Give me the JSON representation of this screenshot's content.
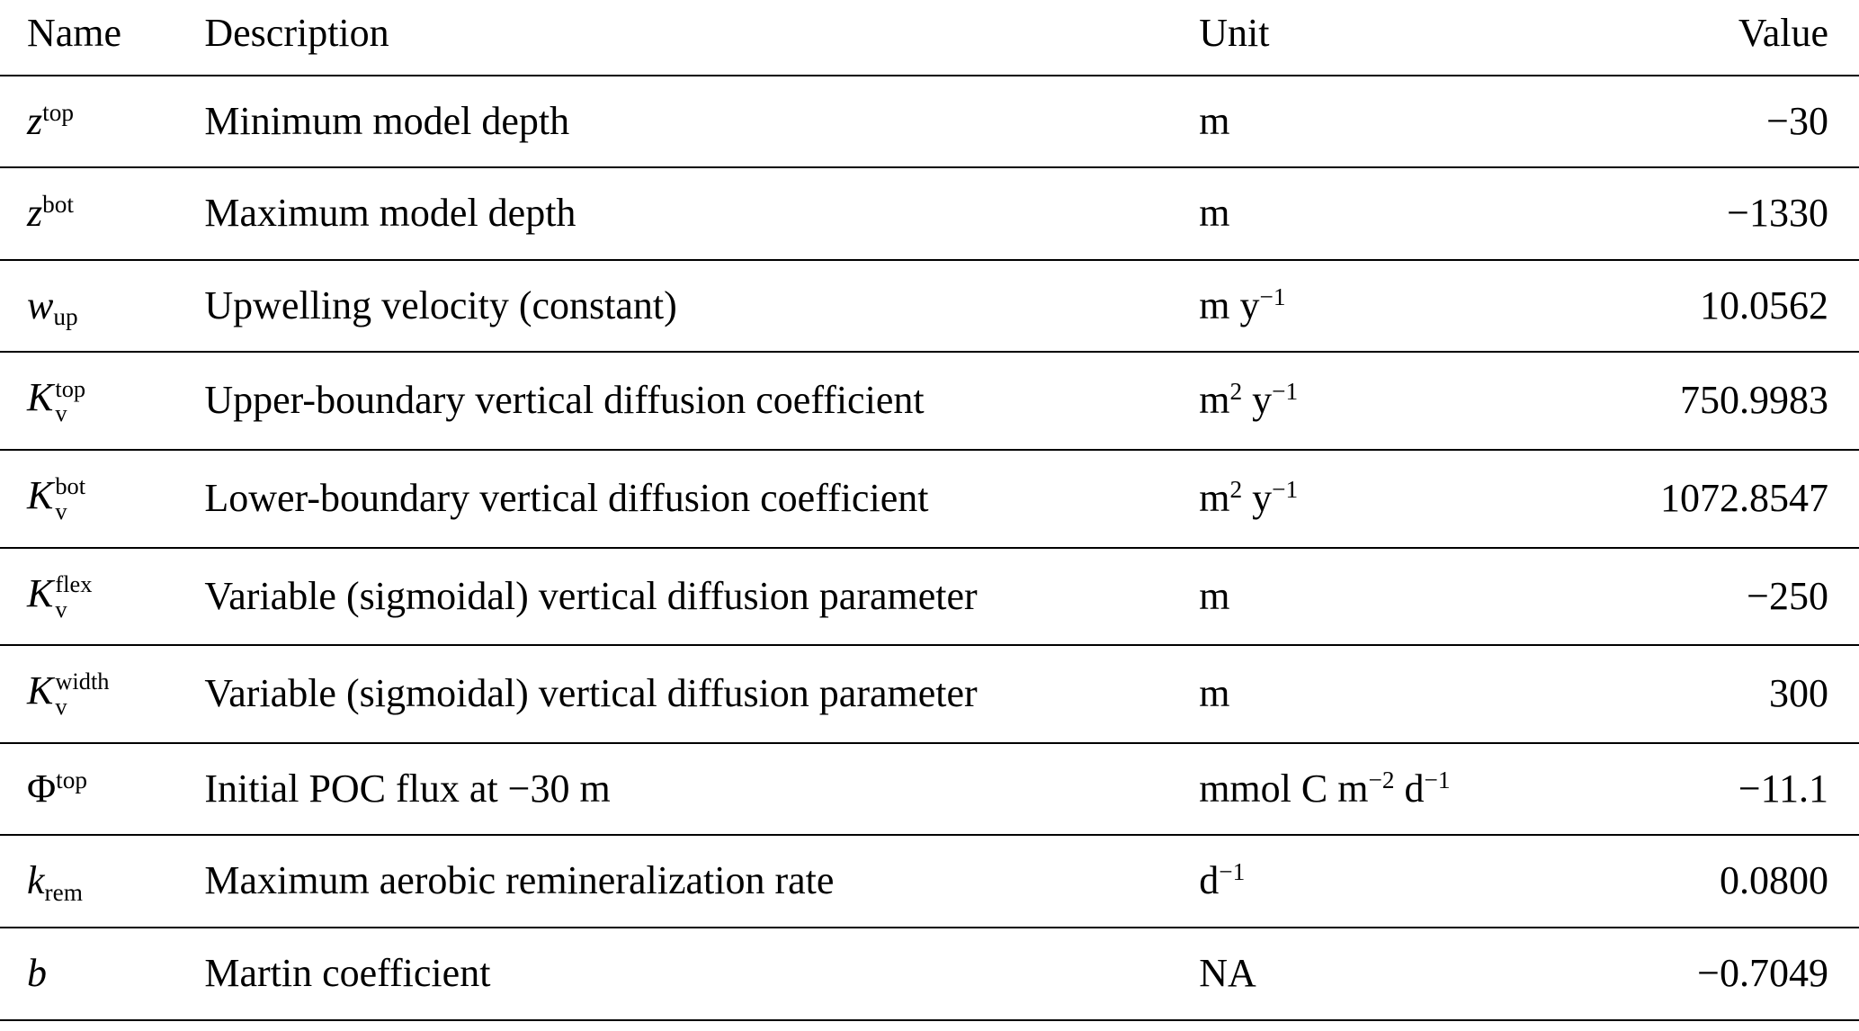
{
  "table": {
    "headers": [
      "Name",
      "Description",
      "Unit",
      "Value"
    ],
    "rows": [
      {
        "name": {
          "base": "z",
          "italic": true,
          "sup": "top",
          "sub": ""
        },
        "description": "Minimum model depth",
        "unit": [
          {
            "t": "m"
          }
        ],
        "value": "−30"
      },
      {
        "name": {
          "base": "z",
          "italic": true,
          "sup": "bot",
          "sub": ""
        },
        "description": "Maximum model depth",
        "unit": [
          {
            "t": "m"
          }
        ],
        "value": "−1330"
      },
      {
        "name": {
          "base": "w",
          "italic": true,
          "sup": "",
          "sub": "up"
        },
        "description": "Upwelling velocity (constant)",
        "unit": [
          {
            "t": "m"
          },
          {
            "t": "y",
            "s": "−1"
          }
        ],
        "value": "10.0562"
      },
      {
        "name": {
          "base": "K",
          "italic": true,
          "sup": "top",
          "sub": "v"
        },
        "description": "Upper-boundary vertical diffusion coefficient",
        "unit": [
          {
            "t": "m",
            "s": "2"
          },
          {
            "t": "y",
            "s": "−1"
          }
        ],
        "value": "750.9983"
      },
      {
        "name": {
          "base": "K",
          "italic": true,
          "sup": "bot",
          "sub": "v"
        },
        "description": "Lower-boundary vertical diffusion coefficient",
        "unit": [
          {
            "t": "m",
            "s": "2"
          },
          {
            "t": "y",
            "s": "−1"
          }
        ],
        "value": "1072.8547"
      },
      {
        "name": {
          "base": "K",
          "italic": true,
          "sup": "flex",
          "sub": "v"
        },
        "description": "Variable (sigmoidal) vertical diffusion parameter",
        "unit": [
          {
            "t": "m"
          }
        ],
        "value": "−250"
      },
      {
        "name": {
          "base": "K",
          "italic": true,
          "sup": "width",
          "sub": "v"
        },
        "description": "Variable (sigmoidal) vertical diffusion parameter",
        "unit": [
          {
            "t": "m"
          }
        ],
        "value": "300"
      },
      {
        "name": {
          "base": "Φ",
          "italic": false,
          "sup": "top",
          "sub": ""
        },
        "description": "Initial POC flux at −30 m",
        "unit": [
          {
            "t": "mmol"
          },
          {
            "t": "C"
          },
          {
            "t": "m",
            "s": "−2"
          },
          {
            "t": "d",
            "s": "−1"
          }
        ],
        "value": "−11.1"
      },
      {
        "name": {
          "base": "k",
          "italic": true,
          "sup": "",
          "sub": "rem"
        },
        "description": "Maximum aerobic remineralization rate",
        "unit": [
          {
            "t": "d",
            "s": "−1"
          }
        ],
        "value": "0.0800"
      },
      {
        "name": {
          "base": "b",
          "italic": true,
          "sup": "",
          "sub": ""
        },
        "description": "Martin coefficient",
        "unit": [
          {
            "t": "NA"
          }
        ],
        "value": "−0.7049"
      }
    ]
  }
}
